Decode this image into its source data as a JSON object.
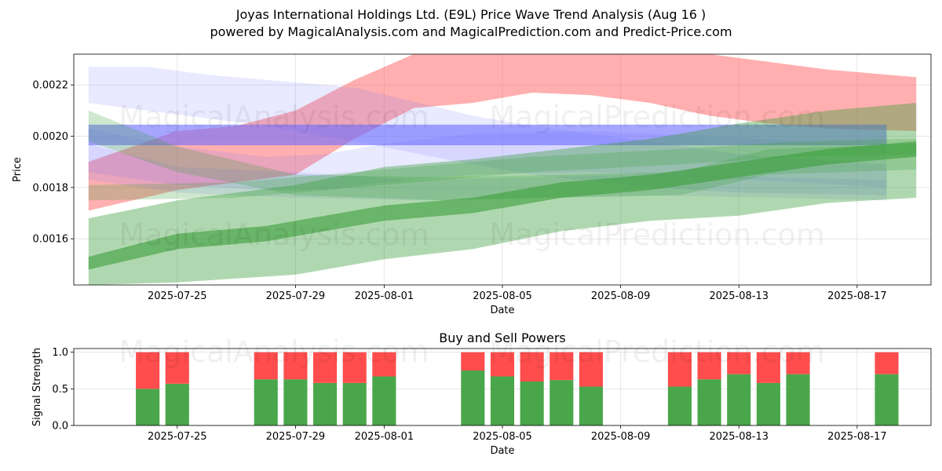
{
  "header": {
    "title_line1": "Joyas International Holdings Ltd. (E9L) Price Wave Trend Analysis (Aug 16 )",
    "title_line2": "powered by MagicalAnalysis.com and MagicalPrediction.com and Predict-Price.com"
  },
  "watermarks": [
    "MagicalAnalysis.com",
    "MagicalPrediction.com"
  ],
  "chart_data": [
    {
      "type": "area",
      "title": "",
      "xlabel": "Date",
      "ylabel": "Price",
      "xlim": [
        "2025-07-21T12:00",
        "2025-08-19T12:00"
      ],
      "ylim": [
        0.00142,
        0.00232
      ],
      "grid": true,
      "x_ticks": [
        "2025-07-25",
        "2025-07-29",
        "2025-08-01",
        "2025-08-05",
        "2025-08-09",
        "2025-08-13",
        "2025-08-17"
      ],
      "y_ticks": [
        0.0016,
        0.0018,
        0.002,
        0.0022
      ],
      "colors": {
        "red": "#ff4d4d",
        "blue": "#6b6bff",
        "green": "#3a9e3a"
      },
      "series": [
        {
          "color": "red",
          "opacity": 0.45,
          "x": [
            "2025-07-22",
            "2025-07-25",
            "2025-07-27",
            "2025-07-29",
            "2025-07-31",
            "2025-08-02",
            "2025-08-04",
            "2025-08-06",
            "2025-08-08",
            "2025-08-10",
            "2025-08-12",
            "2025-08-14",
            "2025-08-16",
            "2025-08-19"
          ],
          "upper": [
            0.0019,
            0.00202,
            0.00204,
            0.0021,
            0.00222,
            0.00232,
            0.00232,
            0.00234,
            0.00234,
            0.00233,
            0.00232,
            0.00229,
            0.00226,
            0.00223
          ],
          "lower": [
            0.00171,
            0.00179,
            0.00182,
            0.00185,
            0.00199,
            0.00211,
            0.00213,
            0.00217,
            0.00216,
            0.00213,
            0.00208,
            0.00205,
            0.00203,
            0.00202
          ]
        },
        {
          "color": "blue",
          "opacity": 0.6,
          "x": [
            "2025-07-22",
            "2025-08-18"
          ],
          "upper": [
            0.002045,
            0.002045
          ],
          "lower": [
            0.001965,
            0.001965
          ]
        },
        {
          "color": "blue",
          "opacity": 0.15,
          "x": [
            "2025-07-22",
            "2025-07-24",
            "2025-07-26",
            "2025-07-28",
            "2025-07-31",
            "2025-08-04",
            "2025-08-06",
            "2025-08-10",
            "2025-08-13",
            "2025-08-18"
          ],
          "upper": [
            0.00227,
            0.00227,
            0.00224,
            0.00222,
            0.00219,
            0.00208,
            0.00204,
            0.00198,
            0.00193,
            0.00189
          ],
          "lower": [
            0.00213,
            0.0021,
            0.00207,
            0.00204,
            0.00198,
            0.00189,
            0.00185,
            0.0018,
            0.00178,
            0.00177
          ]
        },
        {
          "color": "blue",
          "opacity": 0.15,
          "x": [
            "2025-07-22",
            "2025-07-25",
            "2025-07-28",
            "2025-07-30",
            "2025-08-01",
            "2025-08-04",
            "2025-08-08",
            "2025-08-12",
            "2025-08-18"
          ],
          "upper": [
            0.00203,
            0.00196,
            0.00192,
            0.00193,
            0.00197,
            0.00201,
            0.00202,
            0.002,
            0.00196
          ],
          "lower": [
            0.00186,
            0.00181,
            0.00179,
            0.00179,
            0.00182,
            0.00185,
            0.00186,
            0.00184,
            0.0018
          ]
        },
        {
          "color": "blue",
          "opacity": 0.15,
          "x": [
            "2025-07-22",
            "2025-07-25",
            "2025-07-29",
            "2025-08-02",
            "2025-08-06",
            "2025-08-10",
            "2025-08-14",
            "2025-08-18"
          ],
          "upper": [
            0.00197,
            0.00188,
            0.00186,
            0.00183,
            0.00184,
            0.00185,
            0.00184,
            0.00183
          ],
          "lower": [
            0.00183,
            0.00178,
            0.00176,
            0.00175,
            0.00176,
            0.00177,
            0.00176,
            0.00175
          ]
        },
        {
          "color": "green",
          "opacity": 0.4,
          "x": [
            "2025-07-22",
            "2025-07-25",
            "2025-07-29",
            "2025-08-01",
            "2025-08-04",
            "2025-08-07",
            "2025-08-10",
            "2025-08-13",
            "2025-08-16",
            "2025-08-19"
          ],
          "upper": [
            0.00168,
            0.00175,
            0.00181,
            0.00188,
            0.00191,
            0.00195,
            0.00199,
            0.00205,
            0.0021,
            0.00213
          ],
          "lower": [
            0.00142,
            0.00143,
            0.00146,
            0.00152,
            0.00156,
            0.00163,
            0.00167,
            0.00169,
            0.00174,
            0.00176
          ]
        },
        {
          "color": "green",
          "opacity": 0.6,
          "x": [
            "2025-07-22",
            "2025-07-25",
            "2025-07-28",
            "2025-08-01",
            "2025-08-04",
            "2025-08-07",
            "2025-08-10",
            "2025-08-13",
            "2025-08-16",
            "2025-08-19"
          ],
          "upper": [
            0.00153,
            0.00162,
            0.00165,
            0.00173,
            0.00176,
            0.00182,
            0.00185,
            0.0019,
            0.00195,
            0.00198
          ],
          "lower": [
            0.00148,
            0.00156,
            0.00159,
            0.00167,
            0.0017,
            0.00176,
            0.00179,
            0.00184,
            0.00189,
            0.00192
          ]
        },
        {
          "color": "green",
          "opacity": 0.25,
          "x": [
            "2025-07-22",
            "2025-07-25",
            "2025-07-29",
            "2025-08-03",
            "2025-08-07",
            "2025-08-11",
            "2025-08-14",
            "2025-08-19"
          ],
          "upper": [
            0.0021,
            0.00196,
            0.00185,
            0.00184,
            0.00185,
            0.00186,
            0.00195,
            0.00197
          ],
          "lower": [
            0.00198,
            0.00186,
            0.00177,
            0.00175,
            0.00176,
            0.00177,
            0.00185,
            0.00187
          ]
        },
        {
          "color": "green",
          "opacity": 0.25,
          "x": [
            "2025-07-22",
            "2025-07-27",
            "2025-08-01",
            "2025-08-06",
            "2025-08-11",
            "2025-08-15",
            "2025-08-19"
          ],
          "upper": [
            0.00181,
            0.00182,
            0.00187,
            0.00192,
            0.00195,
            0.00198,
            0.00199
          ],
          "lower": [
            0.00175,
            0.00176,
            0.00181,
            0.00186,
            0.00189,
            0.00192,
            0.00193
          ]
        }
      ]
    },
    {
      "type": "bar",
      "title": "Buy and Sell Powers",
      "xlabel": "Date",
      "ylabel": "Signal Strength",
      "xlim": [
        "2025-07-21T12:00",
        "2025-08-19T12:00"
      ],
      "ylim": [
        0,
        1.05
      ],
      "grid": true,
      "x_ticks": [
        "2025-07-25",
        "2025-07-29",
        "2025-08-01",
        "2025-08-05",
        "2025-08-09",
        "2025-08-13",
        "2025-08-17"
      ],
      "y_ticks": [
        0.0,
        0.5,
        1.0
      ],
      "colors": {
        "buy": "#4aa64a",
        "sell": "#ff4d4d"
      },
      "categories": [
        "2025-07-24",
        "2025-07-25",
        "2025-07-28",
        "2025-07-29",
        "2025-07-30",
        "2025-07-31",
        "2025-08-01",
        "2025-08-04",
        "2025-08-05",
        "2025-08-06",
        "2025-08-07",
        "2025-08-08",
        "2025-08-11",
        "2025-08-12",
        "2025-08-13",
        "2025-08-14",
        "2025-08-15",
        "2025-08-18"
      ],
      "series": [
        {
          "kind": "buy",
          "values": [
            0.5,
            0.57,
            0.63,
            0.63,
            0.58,
            0.58,
            0.67,
            0.75,
            0.67,
            0.6,
            0.62,
            0.53,
            0.53,
            0.63,
            0.7,
            0.58,
            0.7,
            0.7
          ]
        },
        {
          "kind": "sell",
          "values": [
            0.5,
            0.43,
            0.37,
            0.37,
            0.42,
            0.42,
            0.33,
            0.25,
            0.33,
            0.4,
            0.38,
            0.47,
            0.47,
            0.37,
            0.3,
            0.42,
            0.3,
            0.3
          ]
        }
      ]
    }
  ]
}
